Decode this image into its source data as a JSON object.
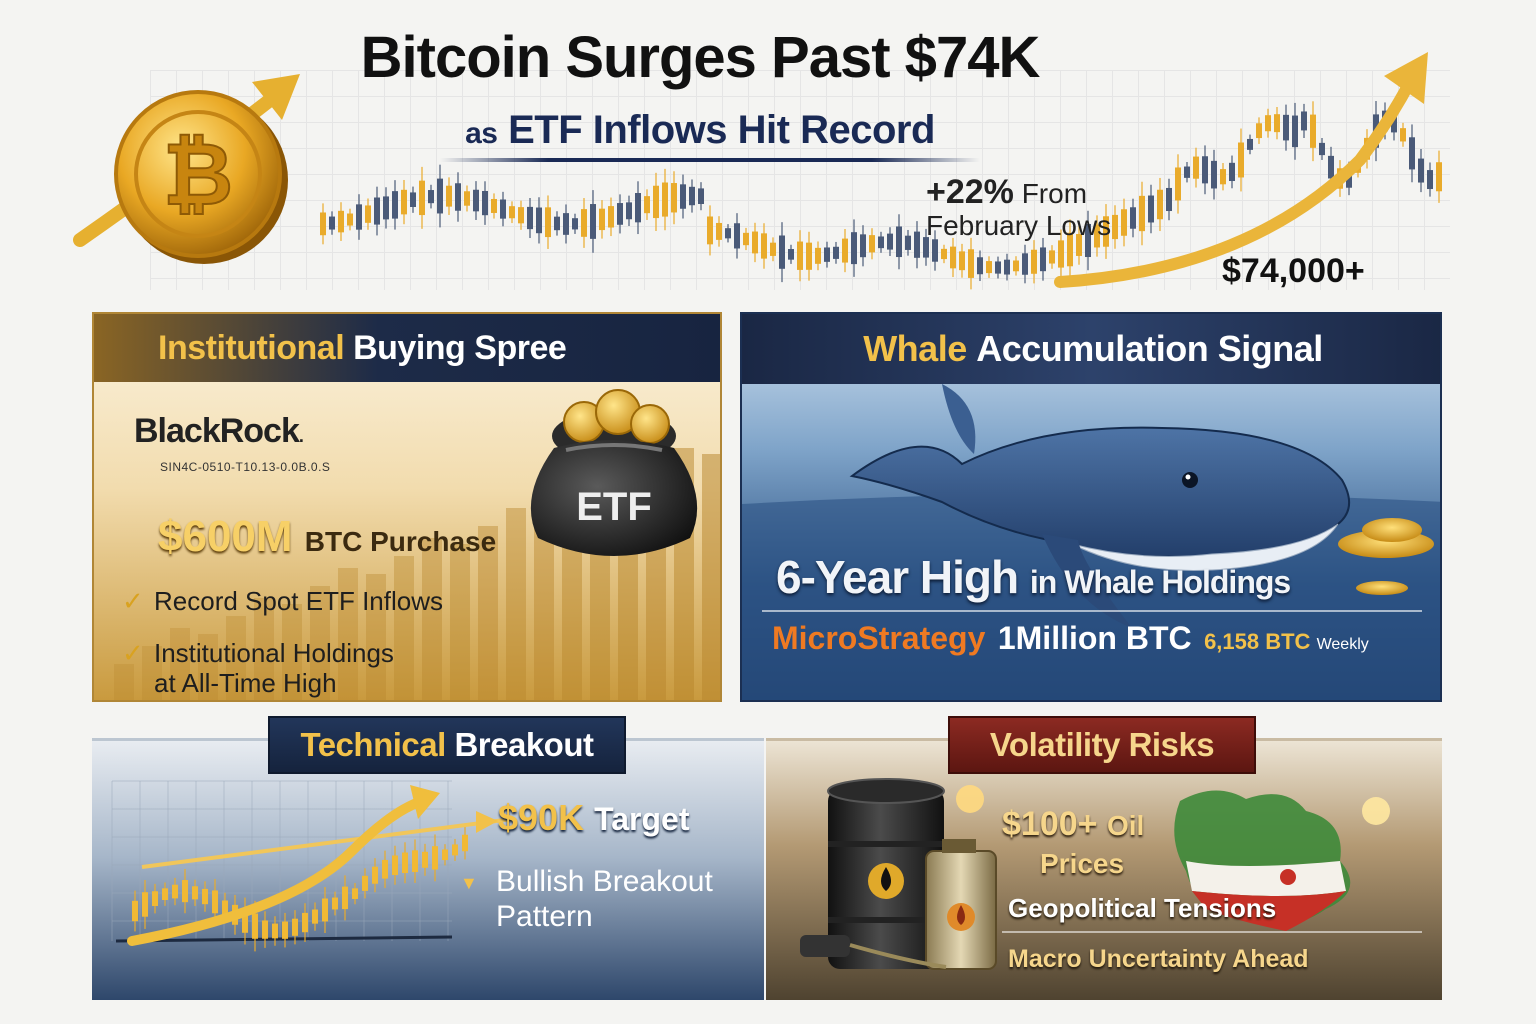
{
  "header": {
    "title": "Bitcoin Surges Past $74K",
    "subtitle_prefix": "as",
    "subtitle": "ETF Inflows Hit Record",
    "change_pct": "+22%",
    "change_text_1": "From",
    "change_text_2": "February Lows",
    "price": "$74,000+",
    "coin_icon": "bitcoin-coin-icon"
  },
  "institutional": {
    "title_highlight": "Institutional",
    "title_rest": "Buying Spree",
    "brand": "BlackRock",
    "brand_period": ".",
    "brand_subtext": "SIN4C-0510-T10.13-0.0B.0.S",
    "bag_label": "ETF",
    "amount": "$600M",
    "amount_suffix": "BTC Purchase",
    "check_1": "Record Spot ETF Inflows",
    "check_2_line1": "Institutional Holdings",
    "check_2_line2": "at All-Time High"
  },
  "whale": {
    "title_highlight": "Whale",
    "title_rest": "Accumulation Signal",
    "high_main": "6-Year High",
    "high_rest": "in Whale Holdings",
    "company": "MicroStrategy",
    "amount": "1Million BTC",
    "weekly_amount": "6,158 BTC",
    "weekly_label": "Weekly"
  },
  "technical": {
    "title_highlight": "Technical",
    "title_rest": "Breakout",
    "target_value": "$90K",
    "target_label": "Target",
    "pattern_line1": "Bullish Breakout",
    "pattern_line2": "Pattern"
  },
  "volatility": {
    "title": "Volatility Risks",
    "oil_value": "$100+",
    "oil_label": "Oil",
    "oil_line2": "Prices",
    "geo": "Geopolitical Tensions",
    "macro": "Macro Uncertainty Ahead"
  },
  "colors": {
    "gold": "#f2c14a",
    "navy": "#1a2a55",
    "orange": "#ef7a22",
    "red_banner": "#8c2a22"
  }
}
